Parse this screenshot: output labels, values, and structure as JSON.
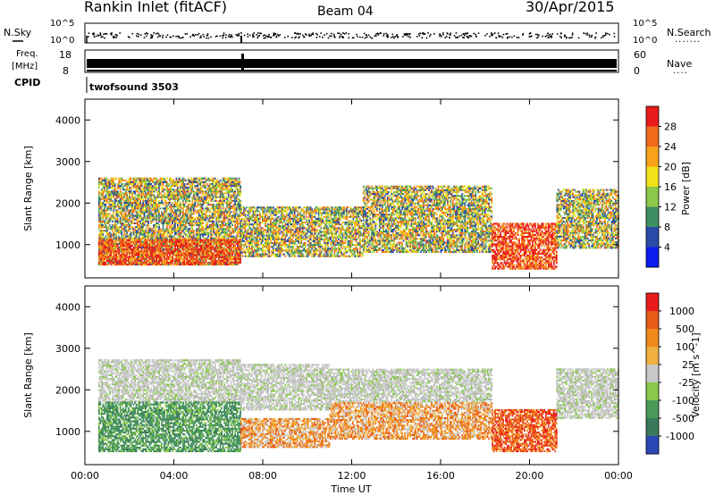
{
  "header": {
    "station": "Rankin Inlet (fitACF)",
    "beam": "Beam 04",
    "date": "30/Apr/2015"
  },
  "top_panels": {
    "nsky_label": "N.Sky",
    "nsearch_label": "N.Search",
    "nsky_ticks_left": [
      "10^5",
      "10^0"
    ],
    "nsearch_ticks_right": [
      "10^5",
      "10^0"
    ],
    "freq_label_1": "Freq.",
    "freq_label_2": "[MHz]",
    "freq_ticks": [
      "18",
      "8"
    ],
    "nave_label": "Nave",
    "nave_ticks": [
      "60",
      "0"
    ],
    "cpid_label": "CPID",
    "cpid_value": "twofsound 3503"
  },
  "chart_data": [
    {
      "type": "heatmap",
      "title": "",
      "ylabel": "Slant Range [km]",
      "xlabel": "Time UT",
      "x_ticks": [
        "00:00",
        "04:00",
        "08:00",
        "12:00",
        "16:00",
        "20:00",
        "00:00"
      ],
      "y_ticks": [
        "1000",
        "2000",
        "3000",
        "4000"
      ],
      "xlim_hours": [
        0,
        24
      ],
      "ylim_km": [
        200,
        4500
      ],
      "colorbar": {
        "label": "Power [dB]",
        "ticks": [
          "4",
          "8",
          "12",
          "16",
          "20",
          "24",
          "28"
        ],
        "colors": [
          "#0a1ef0",
          "#2a4aa8",
          "#3f8f62",
          "#8cc84a",
          "#f0e21a",
          "#f7a21a",
          "#f06a1c",
          "#e81c1c"
        ]
      },
      "regions": [
        {
          "t0": 0.6,
          "t1": 7.0,
          "r0": 500,
          "r1": 2600,
          "level": "mid"
        },
        {
          "t0": 0.6,
          "t1": 7.0,
          "r0": 500,
          "r1": 1100,
          "level": "high"
        },
        {
          "t0": 7.0,
          "t1": 12.5,
          "r0": 700,
          "r1": 1900,
          "level": "mid"
        },
        {
          "t0": 12.5,
          "t1": 18.3,
          "r0": 800,
          "r1": 2400,
          "level": "mid"
        },
        {
          "t0": 18.3,
          "t1": 21.2,
          "r0": 400,
          "r1": 1500,
          "level": "high"
        },
        {
          "t0": 21.2,
          "t1": 24.0,
          "r0": 900,
          "r1": 2300,
          "level": "mid"
        }
      ]
    },
    {
      "type": "heatmap",
      "title": "",
      "ylabel": "Slant Range [km]",
      "xlabel": "Time UT",
      "x_ticks": [
        "00:00",
        "04:00",
        "08:00",
        "12:00",
        "16:00",
        "20:00",
        "00:00"
      ],
      "y_ticks": [
        "1000",
        "2000",
        "3000",
        "4000"
      ],
      "xlim_hours": [
        0,
        24
      ],
      "ylim_km": [
        200,
        4500
      ],
      "colorbar": {
        "label": "Velocity [m s^-1]",
        "ticks": [
          "1000",
          "500",
          "100",
          "25",
          "-25",
          "-100",
          "-500",
          "-1000"
        ],
        "colors": [
          "#2a48b8",
          "#3a7a5a",
          "#4a9a5a",
          "#88c84a",
          "#c8c8c8",
          "#f0b040",
          "#f08a1a",
          "#e85a18",
          "#e81c1c"
        ]
      },
      "regions": [
        {
          "t0": 0.6,
          "t1": 7.0,
          "r0": 1700,
          "r1": 2700,
          "level": "gray"
        },
        {
          "t0": 0.6,
          "t1": 7.0,
          "r0": 500,
          "r1": 1700,
          "level": "green"
        },
        {
          "t0": 7.0,
          "t1": 11.0,
          "r0": 1500,
          "r1": 2600,
          "level": "gray"
        },
        {
          "t0": 7.0,
          "t1": 11.0,
          "r0": 600,
          "r1": 1300,
          "level": "orange"
        },
        {
          "t0": 11.0,
          "t1": 18.3,
          "r0": 1700,
          "r1": 2500,
          "level": "gray"
        },
        {
          "t0": 11.0,
          "t1": 18.3,
          "r0": 800,
          "r1": 1700,
          "level": "orange"
        },
        {
          "t0": 18.3,
          "t1": 21.2,
          "r0": 500,
          "r1": 1500,
          "level": "red"
        },
        {
          "t0": 21.2,
          "t1": 24.0,
          "r0": 1300,
          "r1": 2500,
          "level": "gray"
        }
      ]
    }
  ]
}
